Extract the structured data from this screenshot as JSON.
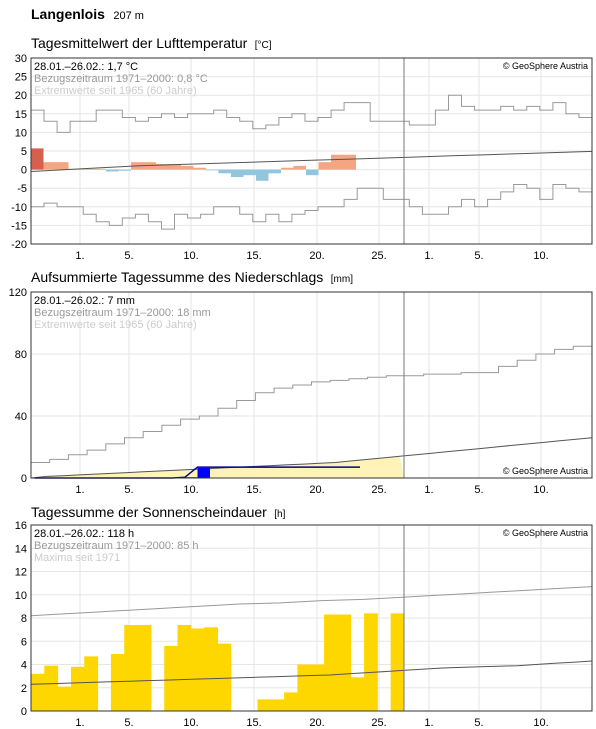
{
  "station": {
    "name": "Langenlois",
    "elevation": "207 m"
  },
  "colors": {
    "temp_warm": "#f4a582",
    "temp_warm_extreme": "#d6604d",
    "temp_cold": "#92c5de",
    "precip_fill": "#fff3b8",
    "precip_line": "#00008b",
    "precip_bar": "#0000ff",
    "sun_bar": "#ffd700",
    "ref_line": "#555555",
    "extreme_line": "#999999"
  },
  "chart_data": [
    {
      "type": "bar",
      "title": "Tagesmittelwert der Lufttemperatur",
      "unit": "[°C]",
      "info": [
        "28.01.–26.02.: 1,7 °C",
        "Bezugszeitraum 1971–2000: 0,8 °C",
        "Extremwerte seit 1965 (60 Jahre)"
      ],
      "copyright": "© GeoSphere Austria",
      "copyright_pos": "top-right",
      "ylim": [
        -20,
        30
      ],
      "yticks": [
        "30",
        "25",
        "20",
        "15",
        "10",
        "5",
        "0",
        "-5",
        "-10",
        "-15",
        "-20"
      ],
      "xticks": [
        "1.",
        "5.",
        "10.",
        "15.",
        "20.",
        "25.",
        "1.",
        "5.",
        "10."
      ],
      "reference": [
        -0.5,
        0,
        0.5,
        1,
        1.3,
        1.6,
        1.9,
        2.2,
        2.5,
        2.8,
        3.1,
        3.4,
        3.7,
        4.0,
        4.3,
        4.6,
        4.9
      ],
      "anomaly": [
        5.7,
        2.0,
        2.0,
        0.2,
        0.2,
        0.2,
        -0.5,
        -0.3,
        2.0,
        2.0,
        1.5,
        1.5,
        1.0,
        0.5,
        -0.2,
        -1.0,
        -2.0,
        -1.5,
        -3.0,
        -1.0,
        0.5,
        1.0,
        -1.5,
        2.0,
        4.0,
        4.0
      ],
      "extreme_max": [
        16,
        13,
        10,
        13,
        13,
        16,
        16,
        14,
        13,
        14,
        15,
        14,
        15,
        15,
        16,
        14,
        13,
        11,
        12,
        14,
        15,
        13,
        14,
        16,
        18,
        18,
        13,
        13,
        13,
        12,
        12,
        16,
        20,
        17,
        16,
        16,
        17,
        16,
        17,
        16,
        18,
        15,
        14,
        17
      ],
      "extreme_min": [
        -10,
        -9,
        -10,
        -10,
        -12,
        -14,
        -15,
        -13,
        -12,
        -14,
        -16,
        -12,
        -13,
        -12,
        -10,
        -10,
        -12,
        -14,
        -12,
        -14,
        -12,
        -11,
        -10,
        -10,
        -8,
        -5,
        -5,
        -8,
        -8,
        -10,
        -12,
        -12,
        -10,
        -8,
        -10,
        -8,
        -6,
        -4,
        -5,
        -8,
        -4,
        -5,
        -6,
        -5
      ]
    },
    {
      "type": "area",
      "title": "Aufsummierte Tagessumme des Niederschlags",
      "unit": "[mm]",
      "info": [
        "28.01.–26.02.: 7 mm",
        "Bezugszeitraum 1971–2000: 18 mm",
        "Extremwerte seit 1965 (60 Jahre)"
      ],
      "copyright": "© GeoSphere Austria",
      "copyright_pos": "bottom-right",
      "ylim": [
        0,
        120
      ],
      "yticks": [
        "120",
        "80",
        "40",
        "0"
      ],
      "xticks": [
        "1.",
        "5.",
        "10.",
        "15.",
        "20.",
        "25.",
        "1.",
        "5.",
        "10."
      ],
      "cumulative": [
        0,
        0,
        0,
        0,
        0,
        0,
        0,
        0,
        0,
        0,
        0,
        0,
        0.5,
        7,
        7,
        7,
        7,
        7,
        7,
        7,
        7,
        7,
        7,
        7,
        7,
        7,
        7
      ],
      "daily": [
        0,
        0,
        0,
        0,
        0,
        0,
        0,
        0,
        0,
        0,
        0,
        0,
        0.5,
        6.5,
        0,
        0,
        0,
        0,
        0,
        0,
        0,
        0,
        0,
        0,
        0,
        0
      ],
      "reference": [
        0,
        1,
        1.5,
        2,
        2.5,
        3,
        3.5,
        4,
        4.5,
        5,
        5.5,
        6,
        6.5,
        7,
        7.5,
        8,
        8.5,
        9,
        9.5,
        10,
        11,
        12,
        13,
        14,
        15,
        16,
        17,
        18,
        19,
        20,
        21,
        22,
        23,
        24,
        25,
        26
      ],
      "extreme_max": [
        10,
        12,
        15,
        18,
        22,
        26,
        30,
        34,
        38,
        40,
        45,
        50,
        55,
        58,
        60,
        62,
        63,
        64,
        65,
        66,
        66,
        67,
        67,
        68,
        68,
        72,
        76,
        80,
        83,
        85,
        86
      ]
    },
    {
      "type": "bar",
      "title": "Tagessumme der Sonnenscheindauer",
      "unit": "[h]",
      "info": [
        "28.01.–26.02.: 118 h",
        "Bezugszeitraum 1971–2000: 85 h",
        "Maxima seit 1971"
      ],
      "copyright": "© GeoSphere Austria",
      "copyright_pos": "top-right",
      "ylim": [
        0,
        16
      ],
      "yticks": [
        "16",
        "14",
        "12",
        "10",
        "8",
        "6",
        "4",
        "2",
        "0"
      ],
      "xticks": [
        "1.",
        "5.",
        "10.",
        "15.",
        "20.",
        "25.",
        "1.",
        "5.",
        "10."
      ],
      "values": [
        3.2,
        3.9,
        2.1,
        3.8,
        4.7,
        0,
        4.9,
        7.4,
        7.4,
        0,
        5.6,
        7.4,
        7.1,
        7.2,
        5.8,
        0,
        0,
        1.0,
        1.0,
        1.6,
        4.0,
        4.0,
        8.3,
        8.3,
        2.9,
        8.4,
        0,
        8.4
      ],
      "reference": [
        2.3,
        2.35,
        2.4,
        2.45,
        2.5,
        2.55,
        2.6,
        2.65,
        2.7,
        2.75,
        2.8,
        2.85,
        2.9,
        2.95,
        3.0,
        3.05,
        3.1,
        3.2,
        3.3,
        3.4,
        3.5,
        3.6,
        3.7,
        3.75,
        3.8,
        3.85,
        3.9,
        4.0,
        4.1,
        4.2,
        4.3
      ],
      "extreme_max": [
        8.2,
        8.3,
        8.4,
        8.5,
        8.6,
        8.7,
        8.8,
        8.9,
        9.0,
        9.1,
        9.2,
        9.25,
        9.3,
        9.4,
        9.5,
        9.55,
        9.6,
        9.7,
        9.8,
        9.9,
        10.0,
        10.1,
        10.2,
        10.3,
        10.4,
        10.5,
        10.6,
        10.7
      ]
    }
  ]
}
